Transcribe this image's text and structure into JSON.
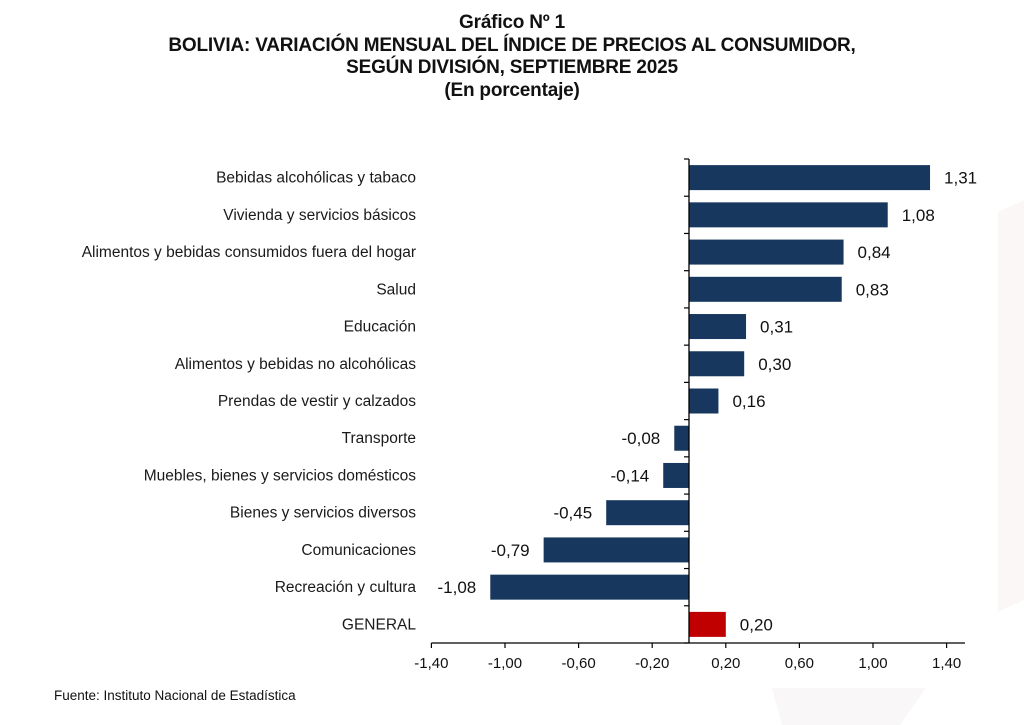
{
  "header": {
    "figure_number": "Gráfico Nº 1",
    "title_line1": "BOLIVIA: VARIACIÓN MENSUAL DEL ÍNDICE DE PRECIOS AL CONSUMIDOR,",
    "title_line2": "SEGÚN DIVISIÓN, SEPTIEMBRE 2025",
    "unit": "(En porcentaje)"
  },
  "footer": {
    "source": "Fuente: Instituto Nacional de Estadística"
  },
  "colors": {
    "bar": "#17375E",
    "highlight_bar": "#C00000",
    "axis": "#000000"
  },
  "chart_data": {
    "type": "bar",
    "orientation": "horizontal",
    "title": "BOLIVIA: VARIACIÓN MENSUAL DEL ÍNDICE DE PRECIOS AL CONSUMIDOR, SEGÚN DIVISIÓN, SEPTIEMBRE 2025",
    "subtitle": "(En porcentaje)",
    "xlabel": "",
    "ylabel": "",
    "xlim": [
      -1.4,
      1.5
    ],
    "grid": false,
    "legend": "none",
    "categories": [
      "Bebidas alcohólicas y tabaco",
      "Vivienda y servicios básicos",
      "Alimentos y bebidas consumidos fuera del hogar",
      "Salud",
      "Educación",
      "Alimentos y bebidas no alcohólicas",
      "Prendas de vestir y calzados",
      "Transporte",
      "Muebles, bienes y servicios domésticos",
      "Bienes y servicios diversos",
      "Comunicaciones",
      "Recreación y cultura",
      "GENERAL"
    ],
    "values": [
      1.31,
      1.08,
      0.84,
      0.83,
      0.31,
      0.3,
      0.16,
      -0.08,
      -0.14,
      -0.45,
      -0.79,
      -1.08,
      0.2
    ],
    "value_labels": [
      "1,31",
      "1,08",
      "0,84",
      "0,83",
      "0,31",
      "0,30",
      "0,16",
      "-0,08",
      "-0,14",
      "-0,45",
      "-0,79",
      "-1,08",
      "0,20"
    ],
    "highlight": [
      "GENERAL"
    ],
    "x_ticks": [
      -1.4,
      -1.0,
      -0.6,
      -0.2,
      0.2,
      0.6,
      1.0,
      1.4
    ],
    "x_tick_labels": [
      "-1,40",
      "-1,00",
      "-0,60",
      "-0,20",
      "0,20",
      "0,60",
      "1,00",
      "1,40"
    ]
  }
}
